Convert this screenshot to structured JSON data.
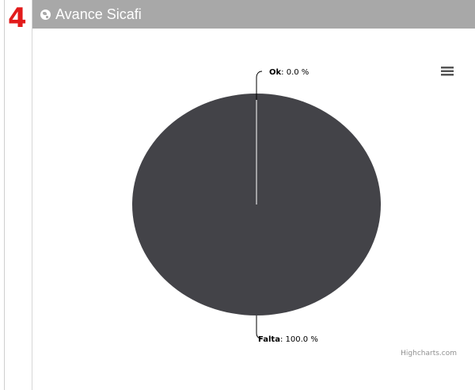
{
  "step_number": "4",
  "panel": {
    "title": "Avance Sicafi"
  },
  "icons": {
    "header": "globe-icon",
    "chart_menu": "hamburger-menu-icon"
  },
  "credits": "Highcharts.com",
  "colors": {
    "header_bg": "#a8a8a8",
    "slice_falta": "#434348",
    "slice_ok": "#7cb5ec",
    "step_number": "#e21b1b"
  },
  "chart_data": {
    "type": "pie",
    "title": "",
    "slices": [
      {
        "name": "Ok",
        "value": 0.0,
        "label_value": "0.0 %"
      },
      {
        "name": "Falta",
        "value": 100.0,
        "label_value": "100.0 %"
      }
    ]
  }
}
